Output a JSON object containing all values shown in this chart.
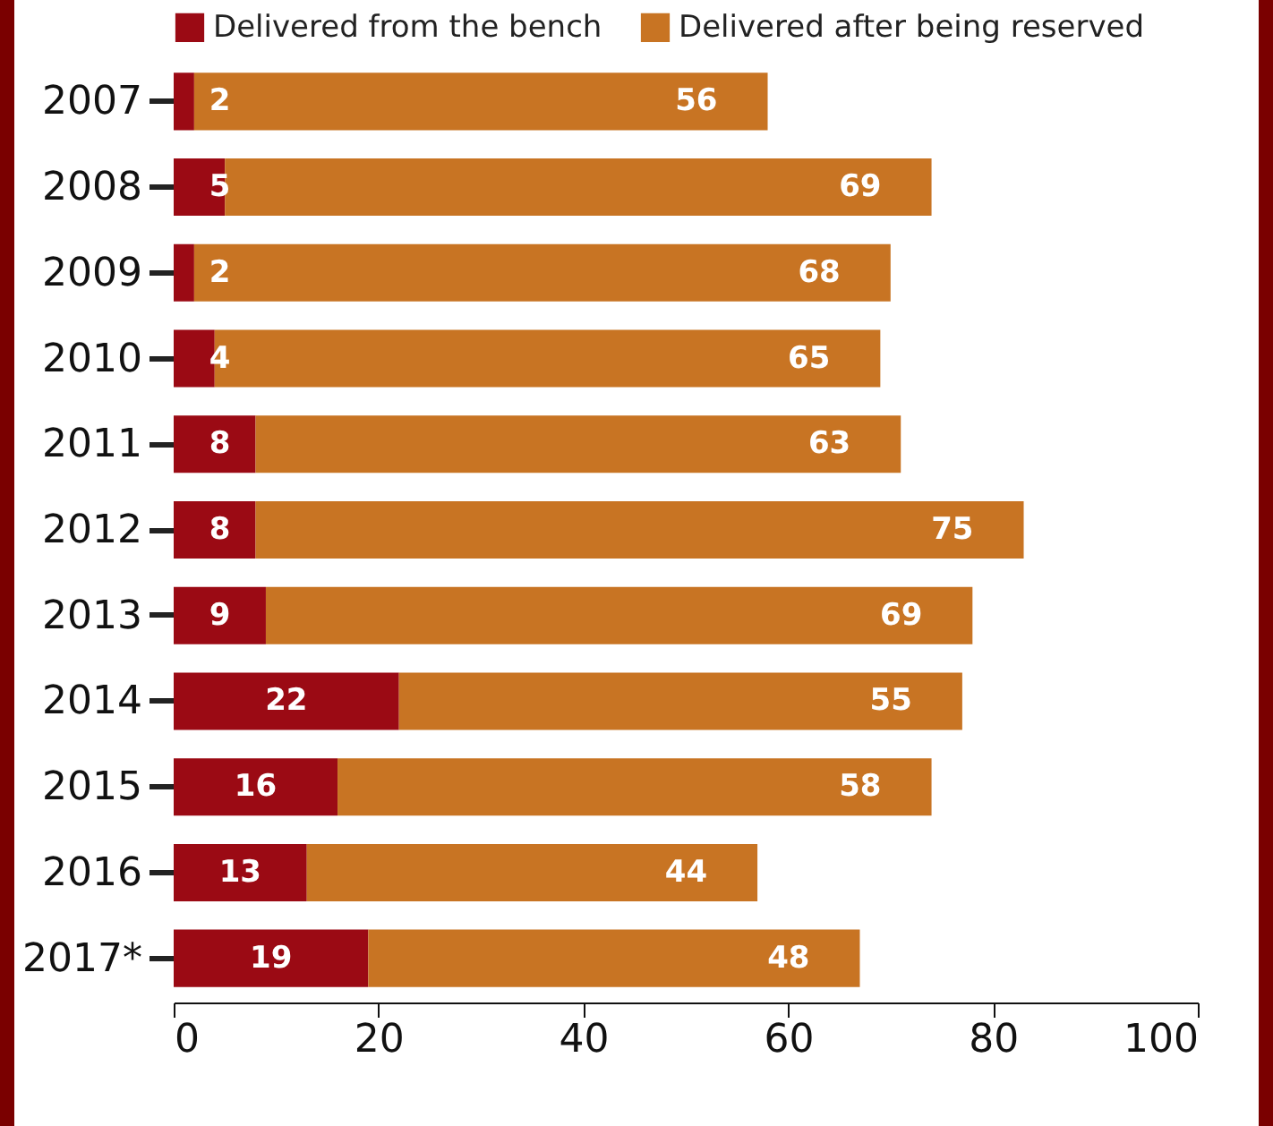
{
  "chart_data": {
    "type": "bar",
    "orientation": "horizontal",
    "stacked": true,
    "categories": [
      "2007",
      "2008",
      "2009",
      "2010",
      "2011",
      "2012",
      "2013",
      "2014",
      "2015",
      "2016",
      "2017*"
    ],
    "series": [
      {
        "name": "Delivered from the bench",
        "color": "#9b0a14",
        "values": [
          2,
          5,
          2,
          4,
          8,
          8,
          9,
          22,
          16,
          13,
          19
        ]
      },
      {
        "name": "Delivered after being reserved",
        "color": "#c87423",
        "values": [
          56,
          69,
          68,
          65,
          63,
          75,
          69,
          55,
          58,
          44,
          48
        ]
      }
    ],
    "xlim": [
      0,
      100
    ],
    "xticks": [
      0,
      20,
      40,
      60,
      80,
      100
    ],
    "data_labels": true,
    "grid": false,
    "legend": "top"
  }
}
